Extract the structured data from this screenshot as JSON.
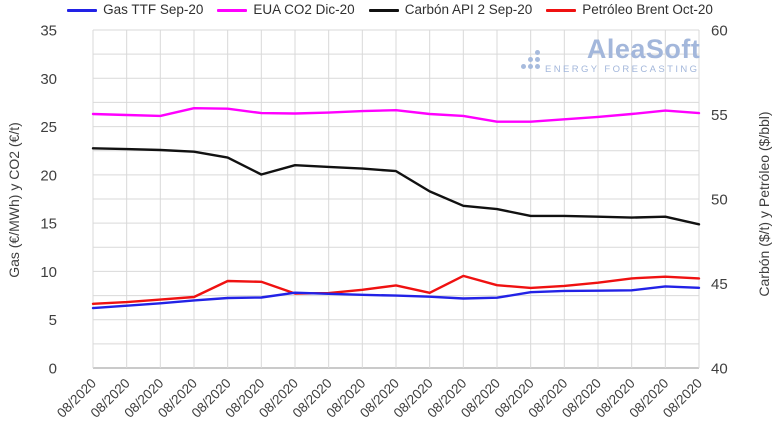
{
  "legend": {
    "items": [
      {
        "label": "Gas TTF Sep-20",
        "color": "#2222e6"
      },
      {
        "label": "EUA CO2 Dic-20",
        "color": "#ff00ff"
      },
      {
        "label": "Carbón API 2 Sep-20",
        "color": "#111111"
      },
      {
        "label": "Petróleo Brent Oct-20",
        "color": "#ef1111"
      }
    ]
  },
  "watermark": {
    "name": "AleaSoft",
    "tagline": "ENERGY FORECASTING"
  },
  "chart_data": {
    "type": "line",
    "grid": true,
    "legend_position": "top",
    "x_tick_labels": [
      "08/2020",
      "08/2020",
      "08/2020",
      "08/2020",
      "08/2020",
      "08/2020",
      "08/2020",
      "08/2020",
      "08/2020",
      "08/2020",
      "08/2020",
      "08/2020",
      "08/2020",
      "08/2020",
      "08/2020",
      "08/2020",
      "08/2020",
      "08/2020",
      "08/2020"
    ],
    "left_axis": {
      "label": "Gas (€/MWh) y CO2 (€/t)",
      "min": 0,
      "max": 35,
      "tick_step": 5,
      "grid_step": 2.5,
      "ticks": [
        0,
        5,
        10,
        15,
        20,
        25,
        30,
        35
      ]
    },
    "right_axis": {
      "label": "Carbón ($/t) y Petróleo ($/bbl)",
      "min": 40,
      "max": 60,
      "tick_step": 5,
      "ticks": [
        40,
        45,
        50,
        55,
        60
      ]
    },
    "series": [
      {
        "name": "Gas TTF Sep-20",
        "axis": "left",
        "unit": "€/MWh",
        "color": "#2222e6",
        "values": [
          6.2,
          6.45,
          6.7,
          7.0,
          7.25,
          7.3,
          7.8,
          7.68,
          7.58,
          7.5,
          7.38,
          7.2,
          7.28,
          7.85,
          7.98,
          8.0,
          8.05,
          8.45,
          8.3
        ]
      },
      {
        "name": "EUA CO2 Dic-20",
        "axis": "left",
        "unit": "€/t",
        "color": "#ff00ff",
        "values": [
          26.3,
          26.2,
          26.1,
          26.9,
          26.85,
          26.4,
          26.35,
          26.45,
          26.6,
          26.7,
          26.3,
          26.1,
          25.5,
          25.5,
          25.75,
          26.0,
          26.3,
          26.65,
          26.4
        ]
      },
      {
        "name": "Carbón API 2 Sep-20",
        "axis": "right",
        "unit": "$/t",
        "color": "#111111",
        "values": [
          53.0,
          52.95,
          52.9,
          52.8,
          52.45,
          51.45,
          52.0,
          51.9,
          51.8,
          51.65,
          50.45,
          49.6,
          49.4,
          49.0,
          49.0,
          48.95,
          48.9,
          48.95,
          48.5
        ]
      },
      {
        "name": "Petróleo Brent Oct-20",
        "axis": "right",
        "unit": "$/bbl",
        "color": "#ef1111",
        "values": [
          43.8,
          43.9,
          44.05,
          44.2,
          45.15,
          45.1,
          44.41,
          44.43,
          44.63,
          44.89,
          44.45,
          45.45,
          44.9,
          44.74,
          44.86,
          45.05,
          45.3,
          45.4,
          45.3
        ]
      }
    ]
  }
}
